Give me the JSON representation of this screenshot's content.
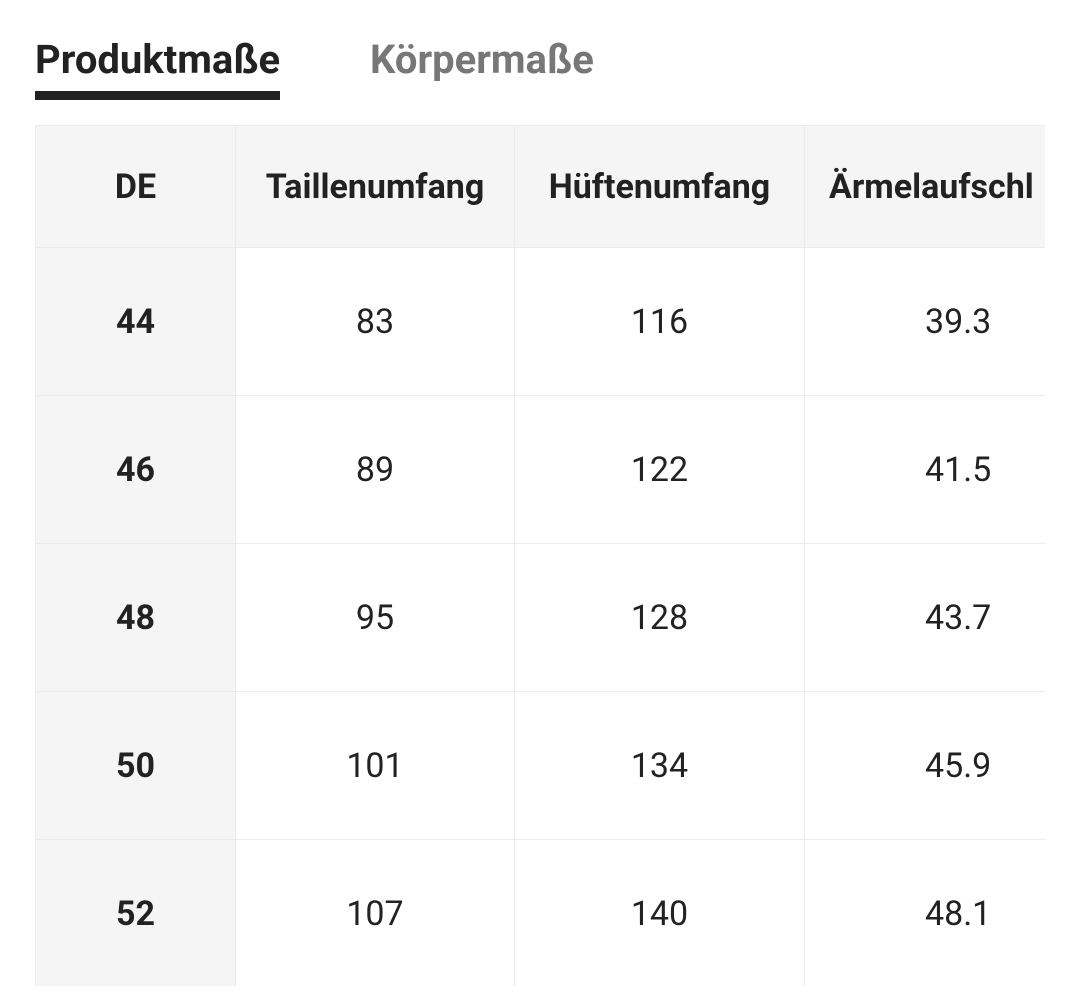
{
  "tabs": [
    "Produktmaße",
    "Körpermaße"
  ],
  "table": {
    "header": [
      "DE",
      "Taillenumfang",
      "Hüftenumfang",
      "Ärmelaufschl"
    ],
    "rows": [
      [
        44,
        83,
        116,
        39.3
      ],
      [
        46,
        89,
        122,
        41.5
      ],
      [
        48,
        95,
        128,
        43.7
      ],
      [
        50,
        101,
        134,
        45.9
      ],
      [
        52,
        107,
        140,
        48.1
      ]
    ]
  }
}
